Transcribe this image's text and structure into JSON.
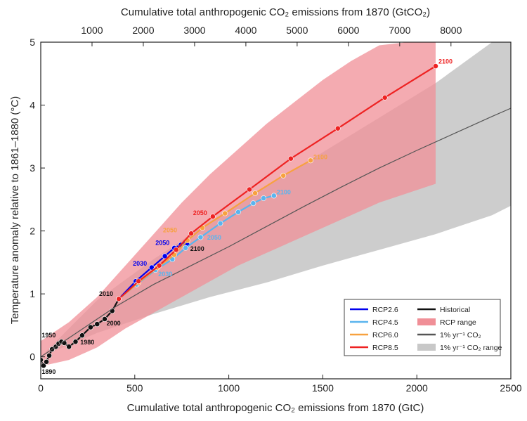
{
  "chart_data": {
    "type": "line",
    "xlabel_bottom": "Cumulative total anthropogenic CO₂ emissions from 1870 (GtC)",
    "xlabel_top": "Cumulative total anthropogenic CO₂ emissions from 1870 (GtCO₂)",
    "ylabel": "Temperature anomaly relative to 1861–1880 (°C)",
    "xlim": [
      0,
      2500
    ],
    "ylim": [
      -0.35,
      5
    ],
    "x_ticks": [
      0,
      500,
      1000,
      1500,
      2000,
      2500
    ],
    "x_tick_labels": [
      "0",
      "500",
      "1000",
      "1500",
      "2000",
      "2500"
    ],
    "top_ticks": [
      1000,
      2000,
      3000,
      4000,
      5000,
      6000,
      7000,
      8000
    ],
    "top_tick_labels": [
      "1000",
      "2000",
      "3000",
      "4000",
      "5000",
      "6000",
      "7000",
      "8000"
    ],
    "y_ticks": [
      0,
      1,
      2,
      3,
      4,
      5
    ],
    "y_tick_labels": [
      "0",
      "1",
      "2",
      "3",
      "4",
      "5"
    ],
    "grid": false,
    "legend_position": "bottom-right",
    "legend": [
      {
        "label": "RCP2.6",
        "kind": "line",
        "color": "#0000ee"
      },
      {
        "label": "RCP4.5",
        "kind": "line",
        "color": "#5ab4ee"
      },
      {
        "label": "RCP6.0",
        "kind": "line",
        "color": "#f7a13f"
      },
      {
        "label": "RCP8.5",
        "kind": "line",
        "color": "#ee2222"
      },
      {
        "label": "Historical",
        "kind": "line",
        "color": "#111111"
      },
      {
        "label": "RCP range",
        "kind": "patch",
        "color": "#f08f97"
      },
      {
        "label": "1% yr⁻¹ CO₂",
        "kind": "line",
        "color": "#555555"
      },
      {
        "label": "1% yr⁻¹ CO₂ range",
        "kind": "patch",
        "color": "#c8c8c8"
      }
    ],
    "series": [
      {
        "name": "Historical",
        "color": "#111111",
        "x": [
          0,
          15,
          30,
          45,
          60,
          80,
          95,
          110,
          125,
          150,
          185,
          220,
          265,
          300,
          340,
          380,
          415
        ],
        "y": [
          -0.05,
          -0.14,
          -0.08,
          0.02,
          0.12,
          0.16,
          0.21,
          0.24,
          0.22,
          0.16,
          0.24,
          0.34,
          0.47,
          0.52,
          0.6,
          0.73,
          0.92
        ],
        "markers": true
      },
      {
        "name": "RCP2.6",
        "color": "#0000ee",
        "x": [
          415,
          505,
          590,
          660,
          710,
          745,
          765,
          780
        ],
        "y": [
          0.92,
          1.2,
          1.42,
          1.6,
          1.73,
          1.78,
          1.8,
          1.78
        ],
        "markers": true
      },
      {
        "name": "RCP4.5",
        "color": "#5ab4ee",
        "x": [
          415,
          510,
          610,
          700,
          770,
          850,
          955,
          1050,
          1130,
          1185,
          1240
        ],
        "y": [
          0.92,
          1.15,
          1.38,
          1.55,
          1.73,
          1.9,
          2.12,
          2.3,
          2.44,
          2.52,
          2.56
        ],
        "markers": true
      },
      {
        "name": "RCP6.0",
        "color": "#f7a13f",
        "x": [
          415,
          520,
          620,
          710,
          780,
          860,
          980,
          1140,
          1290,
          1435
        ],
        "y": [
          0.92,
          1.18,
          1.42,
          1.62,
          1.85,
          2.05,
          2.28,
          2.6,
          2.88,
          3.12
        ],
        "markers": true
      },
      {
        "name": "RCP8.5",
        "color": "#ee2222",
        "x": [
          415,
          520,
          630,
          720,
          800,
          915,
          1110,
          1330,
          1580,
          1830,
          2100
        ],
        "y": [
          0.92,
          1.2,
          1.45,
          1.7,
          1.96,
          2.23,
          2.66,
          3.15,
          3.63,
          4.12,
          4.62
        ],
        "markers": true
      },
      {
        "name": "1% yr⁻¹ CO₂",
        "color": "#555555",
        "x": [
          0,
          200,
          400,
          600,
          800,
          1000,
          1200,
          1400,
          1600,
          1800,
          2000,
          2200,
          2400,
          2500
        ],
        "y": [
          0,
          0.4,
          0.8,
          1.15,
          1.45,
          1.75,
          2.07,
          2.39,
          2.7,
          3.0,
          3.28,
          3.55,
          3.82,
          3.95
        ],
        "markers": false
      }
    ],
    "bands": [
      {
        "name": "1% yr⁻¹ CO₂ range",
        "color": "#c8c8c8",
        "x": [
          0,
          300,
          600,
          900,
          1200,
          1500,
          1800,
          2100,
          2400,
          2500
        ],
        "lower": [
          0,
          0.38,
          0.68,
          0.95,
          1.18,
          1.45,
          1.7,
          1.95,
          2.25,
          2.4
        ],
        "upper": [
          0,
          0.9,
          1.55,
          2.15,
          2.7,
          3.25,
          3.8,
          4.35,
          5.0,
          5.0
        ]
      },
      {
        "name": "RCP range",
        "color": "#f08f97",
        "x": [
          0,
          150,
          300,
          450,
          600,
          750,
          900,
          1050,
          1200,
          1350,
          1500,
          1650,
          1800,
          1950,
          2100
        ],
        "lower": [
          -0.15,
          -0.05,
          0.15,
          0.45,
          0.7,
          0.95,
          1.2,
          1.45,
          1.65,
          1.85,
          2.05,
          2.25,
          2.45,
          2.6,
          2.75
        ],
        "upper": [
          0.25,
          0.55,
          0.95,
          1.45,
          1.95,
          2.45,
          2.9,
          3.3,
          3.7,
          4.05,
          4.4,
          4.7,
          4.95,
          5.0,
          5.0
        ]
      }
    ],
    "annotations": [
      {
        "text": "1890",
        "x": 5,
        "y": -0.27,
        "color": "#111111"
      },
      {
        "text": "1950",
        "x": 5,
        "y": 0.31,
        "color": "#111111"
      },
      {
        "text": "1980",
        "x": 210,
        "y": 0.2,
        "color": "#111111"
      },
      {
        "text": "2000",
        "x": 350,
        "y": 0.5,
        "color": "#111111"
      },
      {
        "text": "2010",
        "x": 310,
        "y": 0.97,
        "color": "#111111"
      },
      {
        "text": "2030",
        "x": 490,
        "y": 1.45,
        "color": "#0000ee"
      },
      {
        "text": "2050",
        "x": 610,
        "y": 1.78,
        "color": "#0000ee"
      },
      {
        "text": "2100",
        "x": 795,
        "y": 1.68,
        "color": "#111111"
      },
      {
        "text": "2030",
        "x": 625,
        "y": 1.28,
        "color": "#5ab4ee"
      },
      {
        "text": "2050",
        "x": 885,
        "y": 1.86,
        "color": "#5ab4ee"
      },
      {
        "text": "2100",
        "x": 1255,
        "y": 2.58,
        "color": "#5ab4ee"
      },
      {
        "text": "2050",
        "x": 650,
        "y": 1.98,
        "color": "#f7a13f"
      },
      {
        "text": "2100",
        "x": 1450,
        "y": 3.14,
        "color": "#f7a13f"
      },
      {
        "text": "2050",
        "x": 810,
        "y": 2.25,
        "color": "#ee2222"
      },
      {
        "text": "2100",
        "x": 2115,
        "y": 4.66,
        "color": "#ee2222"
      }
    ]
  }
}
